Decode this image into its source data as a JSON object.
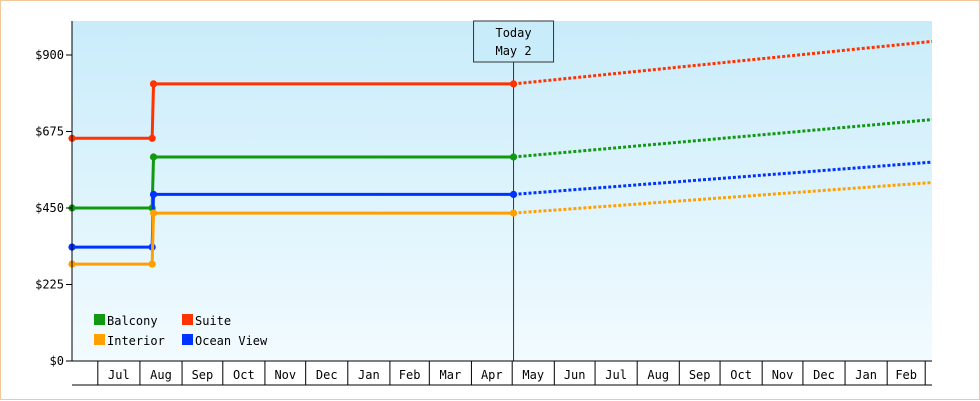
{
  "chart_data": {
    "type": "line",
    "step": true,
    "x_unit": "months",
    "x_range": [
      "2015-06-12",
      "2017-03-06"
    ],
    "y_range": [
      0,
      1000
    ],
    "y_ticks": [
      {
        "value": 0,
        "label": "$0"
      },
      {
        "value": 225,
        "label": "$225"
      },
      {
        "value": 450,
        "label": "$450"
      },
      {
        "value": 675,
        "label": "$675"
      },
      {
        "value": 900,
        "label": "$900"
      }
    ],
    "x_ticks": [
      "Jul",
      "Aug",
      "Sep",
      "Oct",
      "Nov",
      "Dec",
      "Jan",
      "Feb",
      "Mar",
      "Apr",
      "May",
      "Jun",
      "Jul",
      "Aug",
      "Sep",
      "Oct",
      "Nov",
      "Dec",
      "Jan",
      "Feb"
    ],
    "today": {
      "line1": "Today",
      "line2": "May 2",
      "date": "2016-05-02"
    },
    "series": [
      {
        "name": "Suite",
        "color": "#ff3300",
        "points": [
          [
            "2015-06-12",
            655
          ],
          [
            "2015-08-10",
            655
          ],
          [
            "2015-08-11",
            815
          ],
          [
            "2016-05-02",
            815
          ]
        ],
        "projection": [
          [
            "2016-05-02",
            815
          ],
          [
            "2017-03-06",
            940
          ]
        ]
      },
      {
        "name": "Balcony",
        "color": "#119911",
        "points": [
          [
            "2015-06-12",
            450
          ],
          [
            "2015-08-10",
            450
          ],
          [
            "2015-08-11",
            600
          ],
          [
            "2016-05-02",
            600
          ]
        ],
        "projection": [
          [
            "2016-05-02",
            600
          ],
          [
            "2017-03-06",
            710
          ]
        ]
      },
      {
        "name": "Ocean View",
        "color": "#0033ff",
        "points": [
          [
            "2015-06-12",
            335
          ],
          [
            "2015-08-10",
            335
          ],
          [
            "2015-08-11",
            490
          ],
          [
            "2016-05-02",
            490
          ]
        ],
        "projection": [
          [
            "2016-05-02",
            490
          ],
          [
            "2017-03-06",
            585
          ]
        ]
      },
      {
        "name": "Interior",
        "color": "#ffa000",
        "points": [
          [
            "2015-06-12",
            285
          ],
          [
            "2015-08-10",
            285
          ],
          [
            "2015-08-11",
            435
          ],
          [
            "2016-05-02",
            435
          ]
        ],
        "projection": [
          [
            "2016-05-02",
            435
          ],
          [
            "2017-03-06",
            525
          ]
        ]
      }
    ],
    "legend": [
      {
        "name": "Balcony",
        "color": "#119911"
      },
      {
        "name": "Suite",
        "color": "#ff3300"
      },
      {
        "name": "Interior",
        "color": "#ffa000"
      },
      {
        "name": "Ocean View",
        "color": "#0033ff"
      }
    ],
    "legend_position": "bottom-left",
    "background_gradient": [
      "#c9ecfa",
      "#f2fbff"
    ]
  }
}
